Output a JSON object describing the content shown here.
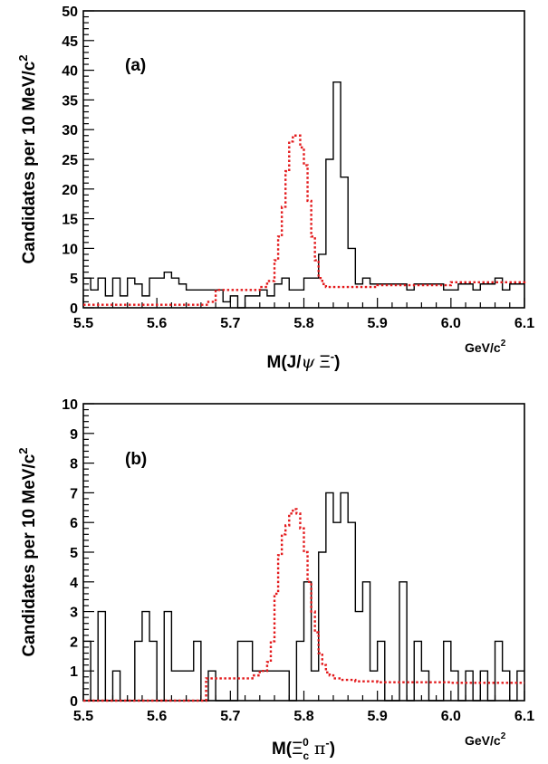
{
  "chart_data": [
    {
      "type": "histogram",
      "panel_label": "(a)",
      "xlabel_main": "M(J/",
      "xlabel_psi": "ψ",
      "xlabel_xi": "Ξ",
      "xlabel_sup": "-",
      "xlabel_close": ")",
      "xunit": "GeV/c",
      "xunit_sup": "2",
      "ylabel": "Candidates per 10 MeV/c",
      "ylabel_sup": "2",
      "xlim": [
        5.5,
        6.1
      ],
      "ylim": [
        0,
        50
      ],
      "xticks": [
        "5.5",
        "5.6",
        "5.7",
        "5.8",
        "5.9",
        "6.0",
        "6.1"
      ],
      "xtick_values": [
        5.5,
        5.6,
        5.7,
        5.8,
        5.9,
        6.0,
        6.1
      ],
      "yticks": [
        "0",
        "5",
        "10",
        "15",
        "20",
        "25",
        "30",
        "35",
        "40",
        "45",
        "50"
      ],
      "ytick_values": [
        0,
        5,
        10,
        15,
        20,
        25,
        30,
        35,
        40,
        45,
        50
      ],
      "bin_width": 0.01,
      "x_start": 5.5,
      "counts": [
        5,
        3,
        5,
        2,
        5,
        2,
        5,
        4,
        2,
        5,
        5,
        6,
        5,
        4,
        3,
        3,
        3,
        3,
        3,
        1,
        2,
        0,
        2,
        2,
        3,
        2,
        4,
        5,
        3,
        3,
        5,
        5,
        9,
        25,
        38,
        22,
        10,
        4,
        5,
        4,
        4,
        4,
        4,
        4,
        3,
        4,
        4,
        4,
        4,
        3,
        3,
        4,
        4,
        3,
        4,
        4,
        5,
        3,
        4,
        4
      ],
      "fit": {
        "color": "#e31a1c",
        "x": [
          5.5,
          5.63,
          5.66,
          5.67,
          5.68,
          5.72,
          5.73,
          5.74,
          5.75,
          5.76,
          5.765,
          5.77,
          5.775,
          5.78,
          5.785,
          5.79,
          5.795,
          5.8,
          5.805,
          5.81,
          5.815,
          5.82,
          5.825,
          5.83,
          5.85,
          5.9,
          6.0,
          6.1
        ],
        "y": [
          0.5,
          0.5,
          0.5,
          1,
          3,
          3,
          3,
          3.5,
          4.5,
          8,
          12,
          17,
          23,
          28,
          29,
          29,
          27,
          24,
          18,
          12,
          8,
          5,
          4,
          3.5,
          3.5,
          3.8,
          4.3,
          4.8
        ]
      }
    },
    {
      "type": "histogram",
      "panel_label": "(b)",
      "xlabel_main": "M(",
      "xlabel_xi": "Ξ",
      "xlabel_sub": "c",
      "xlabel_sup": "0",
      "xlabel_pi": " π",
      "xlabel_pisup": "-",
      "xlabel_close": ")",
      "xunit": "GeV/c",
      "xunit_sup": "2",
      "ylabel": "Candidates per 10 MeV/c",
      "ylabel_sup": "2",
      "xlim": [
        5.5,
        6.1
      ],
      "ylim": [
        0,
        10
      ],
      "xticks": [
        "5.5",
        "5.6",
        "5.7",
        "5.8",
        "5.9",
        "6.0",
        "6.1"
      ],
      "xtick_values": [
        5.5,
        5.6,
        5.7,
        5.8,
        5.9,
        6.0,
        6.1
      ],
      "yticks": [
        "0",
        "1",
        "2",
        "3",
        "4",
        "5",
        "6",
        "7",
        "8",
        "9",
        "10"
      ],
      "ytick_values": [
        0,
        1,
        2,
        3,
        4,
        5,
        6,
        7,
        8,
        9,
        10
      ],
      "bin_width": 0.01,
      "x_start": 5.5,
      "counts": [
        2,
        0,
        3,
        0,
        1,
        0,
        0,
        2,
        3,
        2,
        0,
        3,
        1,
        1,
        1,
        2,
        0,
        1,
        0,
        0,
        0,
        2,
        2,
        1,
        1,
        1,
        1,
        1,
        0,
        2,
        4,
        1,
        5,
        7,
        6,
        7,
        6,
        3,
        4,
        1,
        2,
        0,
        0,
        4,
        0,
        2,
        1,
        0,
        0,
        2,
        1,
        0,
        1,
        0,
        1,
        0,
        2,
        1,
        0,
        1
      ],
      "fit": {
        "color": "#e31a1c",
        "x": [
          5.5,
          5.66,
          5.667,
          5.72,
          5.73,
          5.74,
          5.75,
          5.755,
          5.76,
          5.765,
          5.77,
          5.775,
          5.78,
          5.785,
          5.79,
          5.795,
          5.8,
          5.805,
          5.81,
          5.815,
          5.82,
          5.825,
          5.83,
          5.835,
          5.84,
          5.85,
          5.87,
          5.9,
          6.0,
          6.1
        ],
        "y": [
          0,
          0,
          0.75,
          0.75,
          0.85,
          1.0,
          1.3,
          2.0,
          3.6,
          4.9,
          5.6,
          5.9,
          6.3,
          6.45,
          6.3,
          5.8,
          5.0,
          4.0,
          3.0,
          2.3,
          1.6,
          1.2,
          0.95,
          0.85,
          0.75,
          0.7,
          0.65,
          0.62,
          0.6,
          0.6
        ]
      }
    }
  ]
}
